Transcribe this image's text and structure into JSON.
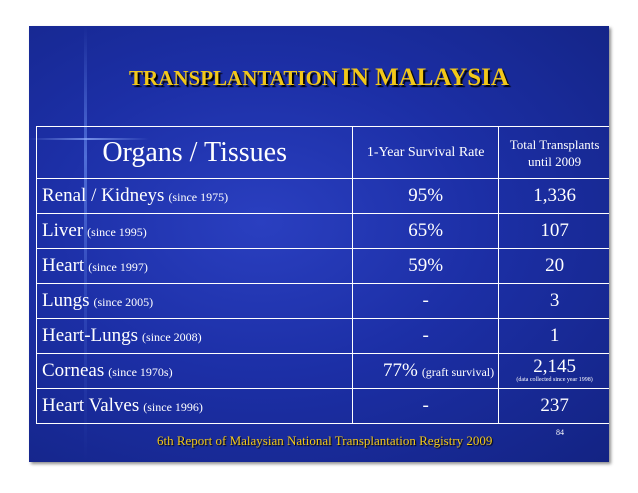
{
  "title": {
    "part1": "TRANSPLANTATION",
    "part2": "IN MALAYSIA"
  },
  "table": {
    "headers": {
      "organ": "Organs / Tissues",
      "survival": "1-Year Survival Rate",
      "total": "Total Transplants until 2009"
    },
    "rows": [
      {
        "organ": "Renal / Kidneys",
        "since": "(since 1975)",
        "survival": "95%",
        "total": "1,336"
      },
      {
        "organ": "Liver",
        "since": "(since 1995)",
        "survival": "65%",
        "total": "107"
      },
      {
        "organ": "Heart",
        "since": "(since 1997)",
        "survival": "59%",
        "total": "20"
      },
      {
        "organ": "Lungs",
        "since": "(since 2005)",
        "survival": "-",
        "total": "3"
      },
      {
        "organ": "Heart-Lungs",
        "since": "(since 2008)",
        "survival": "-",
        "total": "1"
      },
      {
        "organ": "Corneas",
        "since": "(since 1970s)",
        "survival": "77%",
        "survival_note": "(graft survival)",
        "total": "2,145",
        "total_note": "(data collected since year 1998)"
      },
      {
        "organ": "Heart Valves",
        "since": "(since 1996)",
        "survival": "-",
        "total": "237"
      }
    ]
  },
  "footer": "6th Report of Malaysian National Transplantation Registry 2009",
  "page_number": "84",
  "colors": {
    "slide_bg": "#1c2fa6",
    "title": "#f2c81a",
    "text": "#ffffff"
  }
}
